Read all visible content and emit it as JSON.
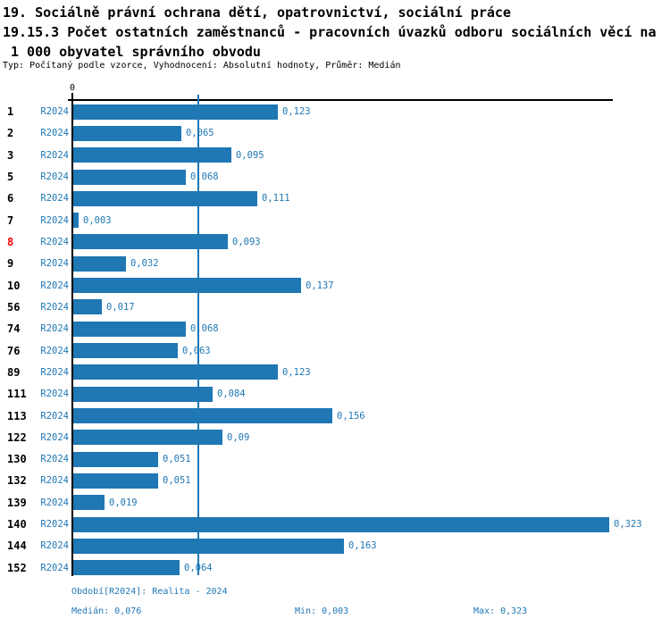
{
  "title": {
    "line1": "19. Sociálně právní ochrana dětí, opatrovnictví, sociální práce",
    "line2": "19.15.3 Počet ostatních zaměstnanců - pracovních úvazků odboru sociálních věcí na",
    "line3": "1 000 obyvatel správního obvodu",
    "meta": "Typ: Počítaný podle vzorce, Vyhodnocení: Absolutní hodnoty, Průměr: Medián"
  },
  "chart_data": {
    "type": "bar",
    "orientation": "horizontal",
    "axis_zero_label": "0",
    "series_label": "R2024",
    "categories": [
      "1",
      "2",
      "3",
      "5",
      "6",
      "7",
      "8",
      "9",
      "10",
      "56",
      "74",
      "76",
      "89",
      "111",
      "113",
      "122",
      "130",
      "132",
      "139",
      "140",
      "144",
      "152"
    ],
    "values": [
      0.123,
      0.065,
      0.095,
      0.068,
      0.111,
      0.003,
      0.093,
      0.032,
      0.137,
      0.017,
      0.068,
      0.063,
      0.123,
      0.084,
      0.156,
      0.09,
      0.051,
      0.051,
      0.019,
      0.323,
      0.163,
      0.064
    ],
    "value_labels": [
      "0,123",
      "0,065",
      "0,095",
      "0,068",
      "0,111",
      "0,003",
      "0,093",
      "0,032",
      "0,137",
      "0,017",
      "0,068",
      "0,063",
      "0,123",
      "0,084",
      "0,156",
      "0,09",
      "0,051",
      "0,051",
      "0,019",
      "0,323",
      "0,163",
      "0,064"
    ],
    "highlighted_category": "8",
    "median_value": 0.076,
    "xlim": [
      0,
      0.328
    ],
    "bar_color": "#1f77b4",
    "text_color": "#1f77b4",
    "highlight_color": "#ff0000",
    "grid": false,
    "legend_position": "none"
  },
  "footer": {
    "period": "Období[R2024]: Realita - 2024",
    "median": "Medián: 0,076",
    "min": "Min: 0,003",
    "max": "Max: 0,323"
  }
}
